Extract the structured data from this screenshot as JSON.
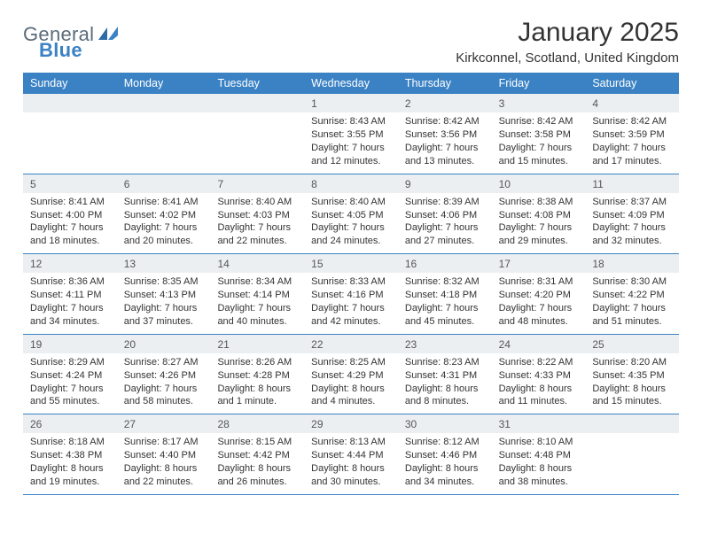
{
  "brand": {
    "name1": "General",
    "name2": "Blue"
  },
  "title": "January 2025",
  "location": "Kirkconnel, Scotland, United Kingdom",
  "colors": {
    "header_bg": "#3b82c4",
    "num_row_bg": "#eceff1",
    "text": "#333333",
    "logo_gray": "#5a6b7a",
    "logo_blue": "#3b82c4"
  },
  "day_headers": [
    "Sunday",
    "Monday",
    "Tuesday",
    "Wednesday",
    "Thursday",
    "Friday",
    "Saturday"
  ],
  "weeks": [
    [
      {
        "blank": true
      },
      {
        "blank": true
      },
      {
        "blank": true
      },
      {
        "n": "1",
        "sr": "Sunrise: 8:43 AM",
        "ss": "Sunset: 3:55 PM",
        "d1": "Daylight: 7 hours",
        "d2": "and 12 minutes."
      },
      {
        "n": "2",
        "sr": "Sunrise: 8:42 AM",
        "ss": "Sunset: 3:56 PM",
        "d1": "Daylight: 7 hours",
        "d2": "and 13 minutes."
      },
      {
        "n": "3",
        "sr": "Sunrise: 8:42 AM",
        "ss": "Sunset: 3:58 PM",
        "d1": "Daylight: 7 hours",
        "d2": "and 15 minutes."
      },
      {
        "n": "4",
        "sr": "Sunrise: 8:42 AM",
        "ss": "Sunset: 3:59 PM",
        "d1": "Daylight: 7 hours",
        "d2": "and 17 minutes."
      }
    ],
    [
      {
        "n": "5",
        "sr": "Sunrise: 8:41 AM",
        "ss": "Sunset: 4:00 PM",
        "d1": "Daylight: 7 hours",
        "d2": "and 18 minutes."
      },
      {
        "n": "6",
        "sr": "Sunrise: 8:41 AM",
        "ss": "Sunset: 4:02 PM",
        "d1": "Daylight: 7 hours",
        "d2": "and 20 minutes."
      },
      {
        "n": "7",
        "sr": "Sunrise: 8:40 AM",
        "ss": "Sunset: 4:03 PM",
        "d1": "Daylight: 7 hours",
        "d2": "and 22 minutes."
      },
      {
        "n": "8",
        "sr": "Sunrise: 8:40 AM",
        "ss": "Sunset: 4:05 PM",
        "d1": "Daylight: 7 hours",
        "d2": "and 24 minutes."
      },
      {
        "n": "9",
        "sr": "Sunrise: 8:39 AM",
        "ss": "Sunset: 4:06 PM",
        "d1": "Daylight: 7 hours",
        "d2": "and 27 minutes."
      },
      {
        "n": "10",
        "sr": "Sunrise: 8:38 AM",
        "ss": "Sunset: 4:08 PM",
        "d1": "Daylight: 7 hours",
        "d2": "and 29 minutes."
      },
      {
        "n": "11",
        "sr": "Sunrise: 8:37 AM",
        "ss": "Sunset: 4:09 PM",
        "d1": "Daylight: 7 hours",
        "d2": "and 32 minutes."
      }
    ],
    [
      {
        "n": "12",
        "sr": "Sunrise: 8:36 AM",
        "ss": "Sunset: 4:11 PM",
        "d1": "Daylight: 7 hours",
        "d2": "and 34 minutes."
      },
      {
        "n": "13",
        "sr": "Sunrise: 8:35 AM",
        "ss": "Sunset: 4:13 PM",
        "d1": "Daylight: 7 hours",
        "d2": "and 37 minutes."
      },
      {
        "n": "14",
        "sr": "Sunrise: 8:34 AM",
        "ss": "Sunset: 4:14 PM",
        "d1": "Daylight: 7 hours",
        "d2": "and 40 minutes."
      },
      {
        "n": "15",
        "sr": "Sunrise: 8:33 AM",
        "ss": "Sunset: 4:16 PM",
        "d1": "Daylight: 7 hours",
        "d2": "and 42 minutes."
      },
      {
        "n": "16",
        "sr": "Sunrise: 8:32 AM",
        "ss": "Sunset: 4:18 PM",
        "d1": "Daylight: 7 hours",
        "d2": "and 45 minutes."
      },
      {
        "n": "17",
        "sr": "Sunrise: 8:31 AM",
        "ss": "Sunset: 4:20 PM",
        "d1": "Daylight: 7 hours",
        "d2": "and 48 minutes."
      },
      {
        "n": "18",
        "sr": "Sunrise: 8:30 AM",
        "ss": "Sunset: 4:22 PM",
        "d1": "Daylight: 7 hours",
        "d2": "and 51 minutes."
      }
    ],
    [
      {
        "n": "19",
        "sr": "Sunrise: 8:29 AM",
        "ss": "Sunset: 4:24 PM",
        "d1": "Daylight: 7 hours",
        "d2": "and 55 minutes."
      },
      {
        "n": "20",
        "sr": "Sunrise: 8:27 AM",
        "ss": "Sunset: 4:26 PM",
        "d1": "Daylight: 7 hours",
        "d2": "and 58 minutes."
      },
      {
        "n": "21",
        "sr": "Sunrise: 8:26 AM",
        "ss": "Sunset: 4:28 PM",
        "d1": "Daylight: 8 hours",
        "d2": "and 1 minute."
      },
      {
        "n": "22",
        "sr": "Sunrise: 8:25 AM",
        "ss": "Sunset: 4:29 PM",
        "d1": "Daylight: 8 hours",
        "d2": "and 4 minutes."
      },
      {
        "n": "23",
        "sr": "Sunrise: 8:23 AM",
        "ss": "Sunset: 4:31 PM",
        "d1": "Daylight: 8 hours",
        "d2": "and 8 minutes."
      },
      {
        "n": "24",
        "sr": "Sunrise: 8:22 AM",
        "ss": "Sunset: 4:33 PM",
        "d1": "Daylight: 8 hours",
        "d2": "and 11 minutes."
      },
      {
        "n": "25",
        "sr": "Sunrise: 8:20 AM",
        "ss": "Sunset: 4:35 PM",
        "d1": "Daylight: 8 hours",
        "d2": "and 15 minutes."
      }
    ],
    [
      {
        "n": "26",
        "sr": "Sunrise: 8:18 AM",
        "ss": "Sunset: 4:38 PM",
        "d1": "Daylight: 8 hours",
        "d2": "and 19 minutes."
      },
      {
        "n": "27",
        "sr": "Sunrise: 8:17 AM",
        "ss": "Sunset: 4:40 PM",
        "d1": "Daylight: 8 hours",
        "d2": "and 22 minutes."
      },
      {
        "n": "28",
        "sr": "Sunrise: 8:15 AM",
        "ss": "Sunset: 4:42 PM",
        "d1": "Daylight: 8 hours",
        "d2": "and 26 minutes."
      },
      {
        "n": "29",
        "sr": "Sunrise: 8:13 AM",
        "ss": "Sunset: 4:44 PM",
        "d1": "Daylight: 8 hours",
        "d2": "and 30 minutes."
      },
      {
        "n": "30",
        "sr": "Sunrise: 8:12 AM",
        "ss": "Sunset: 4:46 PM",
        "d1": "Daylight: 8 hours",
        "d2": "and 34 minutes."
      },
      {
        "n": "31",
        "sr": "Sunrise: 8:10 AM",
        "ss": "Sunset: 4:48 PM",
        "d1": "Daylight: 8 hours",
        "d2": "and 38 minutes."
      },
      {
        "blank": true
      }
    ]
  ]
}
